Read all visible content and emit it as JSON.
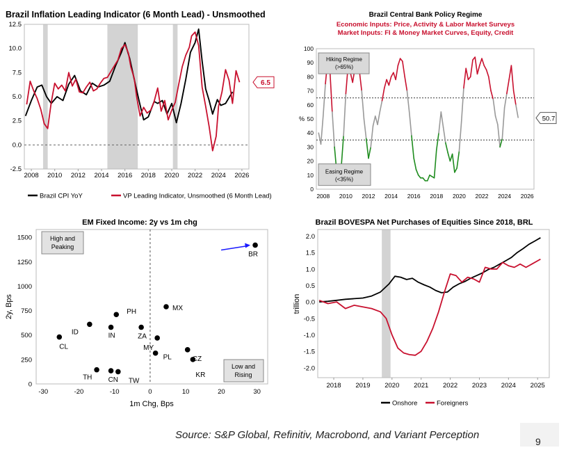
{
  "page": {
    "source": "Source: S&P Global, Refinitiv, Macrobond, and Variant Perception",
    "page_number": "9"
  },
  "chart_data": [
    {
      "id": "p1",
      "type": "line",
      "title": "Brazil Inflation Leading Indicator (6 Month Lead) - Unsmoothed",
      "ylim": [
        -2.5,
        12.5
      ],
      "yticks": [
        "-2.5",
        "0.0",
        "2.5",
        "5.0",
        "7.5",
        "10.0",
        "12.5"
      ],
      "xticks": [
        "2008",
        "2010",
        "2012",
        "2014",
        "2016",
        "2018",
        "2020",
        "2022",
        "2024",
        "2026"
      ],
      "xlim": [
        2007.4,
        2026.6
      ],
      "zero_line": 0,
      "recessions": [
        [
          2009.0,
          2009.4
        ],
        [
          2014.5,
          2017.1
        ],
        [
          2020.1,
          2020.5
        ]
      ],
      "callout": {
        "text": "6.5",
        "value": 6.5,
        "color": "#c8102e"
      },
      "colors": {
        "cpi": "#000000",
        "vp": "#c8102e"
      },
      "series": [
        {
          "name": "Brazil CPI YoY",
          "key": "cpi",
          "x": [
            2007.5,
            2008.0,
            2008.5,
            2008.9,
            2009.3,
            2009.7,
            2010.2,
            2010.7,
            2011.2,
            2011.7,
            2012.2,
            2012.7,
            2013.2,
            2013.7,
            2014.2,
            2014.7,
            2015.2,
            2015.7,
            2016.0,
            2016.4,
            2016.8,
            2017.2,
            2017.6,
            2018.0,
            2018.5,
            2018.8,
            2019.2,
            2019.6,
            2020.0,
            2020.4,
            2020.8,
            2021.2,
            2021.6,
            2022.0,
            2022.3,
            2022.6,
            2022.9,
            2023.2,
            2023.5,
            2023.9,
            2024.2,
            2024.6,
            2024.9,
            2025.2
          ],
          "y": [
            3.0,
            4.6,
            6.0,
            6.2,
            5.0,
            4.3,
            5.0,
            4.6,
            6.3,
            7.2,
            5.6,
            5.2,
            6.4,
            6.0,
            6.2,
            6.6,
            8.2,
            9.6,
            10.6,
            9.0,
            6.8,
            4.6,
            2.6,
            2.9,
            4.5,
            4.3,
            4.6,
            3.2,
            4.3,
            2.3,
            4.3,
            6.8,
            9.6,
            10.6,
            12.0,
            8.7,
            5.8,
            4.6,
            3.2,
            4.7,
            4.1,
            4.3,
            4.9,
            5.5
          ]
        },
        {
          "name": "VP Leading Indicator, Unsmoothed (6 Month Lead)",
          "key": "vp",
          "x": [
            2007.6,
            2007.9,
            2008.2,
            2008.5,
            2008.8,
            2009.1,
            2009.4,
            2009.7,
            2010.0,
            2010.3,
            2010.6,
            2010.9,
            2011.2,
            2011.5,
            2011.8,
            2012.1,
            2012.4,
            2012.7,
            2013.0,
            2013.3,
            2013.6,
            2013.9,
            2014.2,
            2014.5,
            2014.8,
            2015.1,
            2015.4,
            2015.7,
            2016.0,
            2016.3,
            2016.5,
            2016.8,
            2017.0,
            2017.3,
            2017.6,
            2017.9,
            2018.2,
            2018.5,
            2018.8,
            2019.1,
            2019.4,
            2019.7,
            2020.0,
            2020.3,
            2020.6,
            2020.9,
            2021.2,
            2021.5,
            2021.7,
            2022.0,
            2022.3,
            2022.6,
            2022.9,
            2023.2,
            2023.5,
            2023.8,
            2024.0,
            2024.3,
            2024.6,
            2024.9,
            2025.2,
            2025.5,
            2025.8
          ],
          "y": [
            4.2,
            6.6,
            5.6,
            4.8,
            3.7,
            2.2,
            1.7,
            4.4,
            6.4,
            5.8,
            6.2,
            5.6,
            7.5,
            6.1,
            6.8,
            5.5,
            5.4,
            6.0,
            6.5,
            5.6,
            5.8,
            6.4,
            6.9,
            7.0,
            7.6,
            8.2,
            8.8,
            10.0,
            10.4,
            9.5,
            8.1,
            6.9,
            5.0,
            3.0,
            3.9,
            3.3,
            3.6,
            4.5,
            5.9,
            3.5,
            4.6,
            2.6,
            3.6,
            4.4,
            6.3,
            8.1,
            9.3,
            10.1,
            11.3,
            11.7,
            10.3,
            6.0,
            4.0,
            1.9,
            -0.6,
            0.9,
            4.0,
            5.5,
            7.8,
            6.7,
            4.3,
            7.7,
            6.5
          ]
        }
      ],
      "legend": [
        "Brazil CPI YoY",
        "VP Leading Indicator, Unsmoothed (6 Month Lead)"
      ]
    },
    {
      "id": "p2",
      "type": "line",
      "title": "Brazil Central Bank Policy Regime",
      "subtitle1": "Economic Inputs: Price, Activity & Labor Market Surveys",
      "subtitle2": "Market Inputs: FI & Money Market Curves, Equity, Credit",
      "ylabel": "%",
      "ylim": [
        0,
        100
      ],
      "yticks": [
        "0",
        "10",
        "20",
        "30",
        "40",
        "50",
        "60",
        "70",
        "80",
        "90",
        "100"
      ],
      "xticks": [
        "2008",
        "2010",
        "2012",
        "2014",
        "2016",
        "2018",
        "2020",
        "2022",
        "2024",
        "2026"
      ],
      "xlim": [
        2007.4,
        2026.6
      ],
      "thresholds": [
        65,
        35
      ],
      "regime_labels": {
        "hiking": "Hiking Regime (>65%)",
        "hiking_l1": "Hiking Regime",
        "hiking_l2": "(>65%)",
        "easing_l1": "Easing Regime",
        "easing_l2": "(<35%)"
      },
      "callout": {
        "text": "50.7",
        "value": 50.7
      },
      "colors": {
        "hiking": "#c8102e",
        "easing": "#1e8c1e",
        "neutral": "#999999"
      },
      "series": [
        {
          "name": "Policy regime",
          "x": [
            2007.6,
            2007.8,
            2008.0,
            2008.2,
            2008.4,
            2008.6,
            2008.8,
            2009.0,
            2009.2,
            2009.4,
            2009.6,
            2009.8,
            2010.0,
            2010.2,
            2010.4,
            2010.6,
            2010.8,
            2011.0,
            2011.2,
            2011.4,
            2011.6,
            2011.8,
            2012.0,
            2012.2,
            2012.4,
            2012.6,
            2012.8,
            2013.0,
            2013.2,
            2013.4,
            2013.6,
            2013.8,
            2014.0,
            2014.2,
            2014.4,
            2014.6,
            2014.8,
            2015.0,
            2015.2,
            2015.4,
            2015.6,
            2015.8,
            2016.0,
            2016.2,
            2016.4,
            2016.6,
            2016.8,
            2017.0,
            2017.2,
            2017.4,
            2017.6,
            2017.8,
            2018.0,
            2018.2,
            2018.4,
            2018.6,
            2018.8,
            2019.0,
            2019.2,
            2019.4,
            2019.6,
            2019.8,
            2020.0,
            2020.2,
            2020.4,
            2020.6,
            2020.8,
            2021.0,
            2021.2,
            2021.4,
            2021.6,
            2021.8,
            2022.0,
            2022.2,
            2022.4,
            2022.6,
            2022.8,
            2023.0,
            2023.2,
            2023.4,
            2023.6,
            2023.8,
            2024.0,
            2024.2,
            2024.4,
            2024.6,
            2024.8,
            2025.0,
            2025.2
          ],
          "y": [
            40,
            32,
            52,
            75,
            92,
            84,
            55,
            30,
            12,
            5,
            16,
            38,
            68,
            88,
            83,
            76,
            86,
            90,
            84,
            70,
            50,
            36,
            22,
            30,
            45,
            52,
            46,
            55,
            63,
            72,
            78,
            74,
            80,
            83,
            78,
            88,
            93,
            91,
            80,
            70,
            55,
            38,
            22,
            14,
            10,
            8,
            8,
            6,
            6,
            10,
            9,
            8,
            28,
            40,
            55,
            44,
            33,
            26,
            20,
            25,
            12,
            15,
            27,
            48,
            72,
            86,
            78,
            80,
            92,
            94,
            82,
            88,
            93,
            88,
            85,
            80,
            70,
            64,
            52,
            46,
            30,
            36,
            58,
            68,
            78,
            88,
            70,
            60,
            51
          ]
        }
      ]
    },
    {
      "id": "p3",
      "type": "scatter",
      "title": "EM Fixed Income: 2y vs 1m chg",
      "xlabel": "1m Chg, Bps",
      "ylabel": "2y, Bps",
      "xlim": [
        -32,
        33
      ],
      "ylim": [
        0,
        1580
      ],
      "xticks": [
        "-30",
        "-20",
        "-10",
        "0",
        "10",
        "20",
        "30"
      ],
      "yticks": [
        "0",
        "250",
        "500",
        "750",
        "1000",
        "1250",
        "1500"
      ],
      "quadrants": {
        "top_left_l1": "High and",
        "top_left_l2": "Peaking",
        "bottom_right_l1": "Low and",
        "bottom_right_l2": "Rising"
      },
      "arrow_color": "#1a1aff",
      "points": [
        {
          "label": "BR",
          "x": 29.5,
          "y": 1420
        },
        {
          "label": "MX",
          "x": 4.5,
          "y": 790
        },
        {
          "label": "PH",
          "x": -9.5,
          "y": 710
        },
        {
          "label": "IN",
          "x": -11.0,
          "y": 580
        },
        {
          "label": "ID",
          "x": -17.0,
          "y": 610
        },
        {
          "label": "ZA",
          "x": -2.5,
          "y": 580
        },
        {
          "label": "CL",
          "x": -25.5,
          "y": 480
        },
        {
          "label": "MY",
          "x": 2.0,
          "y": 470
        },
        {
          "label": "PL",
          "x": 1.5,
          "y": 315
        },
        {
          "label": "CZ",
          "x": 10.5,
          "y": 350
        },
        {
          "label": "KR",
          "x": 12.0,
          "y": 250
        },
        {
          "label": "TH",
          "x": -15.0,
          "y": 145
        },
        {
          "label": "CN",
          "x": -11.0,
          "y": 135
        },
        {
          "label": "TW",
          "x": -9.0,
          "y": 125
        }
      ]
    },
    {
      "id": "p4",
      "type": "line",
      "title": "Brazil BOVESPA Net Purchases of Equities Since 2018, BRL",
      "ylabel": "trillion",
      "ylim": [
        -2.3,
        2.2
      ],
      "yticks": [
        "-2.0",
        "-1.5",
        "-1.0",
        "-0.5",
        "0.0",
        "0.5",
        "1.0",
        "1.5",
        "2.0"
      ],
      "xticks": [
        "2018",
        "2019",
        "2020",
        "2021",
        "2022",
        "2023",
        "2024",
        "2025"
      ],
      "xlim": [
        2017.45,
        2025.4
      ],
      "recessions": [
        [
          2019.65,
          2019.95
        ]
      ],
      "colors": {
        "onshore": "#000000",
        "foreigners": "#c8102e"
      },
      "series": [
        {
          "name": "Onshore",
          "key": "onshore",
          "x": [
            2017.5,
            2017.8,
            2018.1,
            2018.4,
            2018.7,
            2019.0,
            2019.3,
            2019.6,
            2019.9,
            2020.1,
            2020.3,
            2020.5,
            2020.7,
            2020.9,
            2021.1,
            2021.3,
            2021.5,
            2021.7,
            2021.9,
            2022.1,
            2022.3,
            2022.5,
            2022.7,
            2022.9,
            2023.1,
            2023.3,
            2023.5,
            2023.7,
            2023.9,
            2024.1,
            2024.3,
            2024.5,
            2024.7,
            2024.9,
            2025.1
          ],
          "y": [
            0.0,
            0.02,
            0.05,
            0.08,
            0.1,
            0.12,
            0.18,
            0.3,
            0.55,
            0.78,
            0.75,
            0.68,
            0.72,
            0.6,
            0.52,
            0.45,
            0.35,
            0.28,
            0.3,
            0.45,
            0.55,
            0.62,
            0.72,
            0.8,
            0.88,
            0.98,
            1.05,
            1.15,
            1.25,
            1.35,
            1.5,
            1.62,
            1.75,
            1.85,
            1.95
          ]
        },
        {
          "name": "Foreigners",
          "key": "foreigners",
          "x": [
            2017.5,
            2017.8,
            2018.1,
            2018.4,
            2018.7,
            2019.0,
            2019.3,
            2019.6,
            2019.8,
            2020.0,
            2020.2,
            2020.4,
            2020.6,
            2020.8,
            2021.0,
            2021.2,
            2021.4,
            2021.6,
            2021.8,
            2022.0,
            2022.2,
            2022.4,
            2022.6,
            2022.8,
            2023.0,
            2023.2,
            2023.4,
            2023.6,
            2023.8,
            2024.0,
            2024.2,
            2024.4,
            2024.6,
            2024.8,
            2025.1
          ],
          "y": [
            0.05,
            -0.05,
            0.0,
            -0.2,
            -0.1,
            -0.15,
            -0.2,
            -0.3,
            -0.5,
            -1.0,
            -1.4,
            -1.55,
            -1.6,
            -1.62,
            -1.5,
            -1.2,
            -0.8,
            -0.3,
            0.3,
            0.85,
            0.8,
            0.6,
            0.75,
            0.7,
            0.6,
            1.05,
            1.0,
            1.0,
            1.2,
            1.1,
            1.05,
            1.15,
            1.05,
            1.15,
            1.3
          ]
        }
      ],
      "legend": [
        "Onshore",
        "Foreigners"
      ]
    }
  ]
}
